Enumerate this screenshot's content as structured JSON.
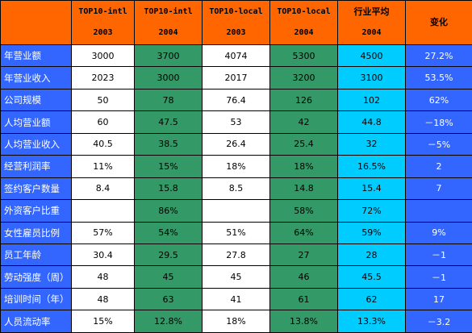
{
  "header": {
    "corner": "",
    "columns": [
      {
        "line1": "TOP10-intl",
        "line2": "2003"
      },
      {
        "line1": "TOP10-intl",
        "line2": "2004"
      },
      {
        "line1": "TOP10-local",
        "line2": "2003"
      },
      {
        "line1": "TOP10-local",
        "line2": "2004"
      },
      {
        "line1": "行业平均",
        "line2": "2004"
      },
      {
        "line1": "变化",
        "line2": ""
      }
    ]
  },
  "rows": [
    {
      "label": "年营业额",
      "values": [
        "3000",
        "3700",
        "4074",
        "5300",
        "4500",
        "27.2%"
      ]
    },
    {
      "label": "年营业收入",
      "values": [
        "2023",
        "3000",
        "2017",
        "3200",
        "3100",
        "53.5%"
      ]
    },
    {
      "label": "公司规模",
      "values": [
        "50",
        "78",
        "76.4",
        "126",
        "102",
        "62%"
      ]
    },
    {
      "label": "人均营业额",
      "values": [
        "60",
        "47.5",
        "53",
        "42",
        "44.8",
        "－18%"
      ]
    },
    {
      "label": "人均营业收入",
      "values": [
        "40.5",
        "38.5",
        "26.4",
        "25.4",
        "32",
        "－5%"
      ]
    },
    {
      "label": "经营利润率",
      "values": [
        "11%",
        "15%",
        "18%",
        "18%",
        "16.5%",
        "2"
      ]
    },
    {
      "label": "签约客户数量",
      "values": [
        "8.4",
        "15.8",
        "8.5",
        "14.8",
        "15.4",
        "7"
      ]
    },
    {
      "label": "外资客户比重",
      "values": [
        "",
        "86%",
        "",
        "58%",
        "72%",
        ""
      ]
    },
    {
      "label": "女性雇员比例",
      "values": [
        "57%",
        "54%",
        "51%",
        "64%",
        "59%",
        "9%"
      ]
    },
    {
      "label": "员工年龄",
      "values": [
        "30.4",
        "29.5",
        "27.8",
        "27",
        "28",
        "－1"
      ]
    },
    {
      "label": "劳动强度（周）",
      "values": [
        "48",
        "45",
        "45",
        "46",
        "45.5",
        "－1"
      ]
    },
    {
      "label": "培训时间（年）",
      "values": [
        "48",
        "63",
        "41",
        "61",
        "62",
        "17"
      ]
    },
    {
      "label": "人员流动率",
      "values": [
        "15%",
        "12.8%",
        "18%",
        "13.8%",
        "13.3%",
        "－3.2"
      ]
    }
  ],
  "colors": {
    "header_orange": "#ff6600",
    "label_blue": "#3366ff",
    "col_2004_green": "#339966",
    "avg_cyan": "#00ccff",
    "change_blue": "#3366ff"
  }
}
